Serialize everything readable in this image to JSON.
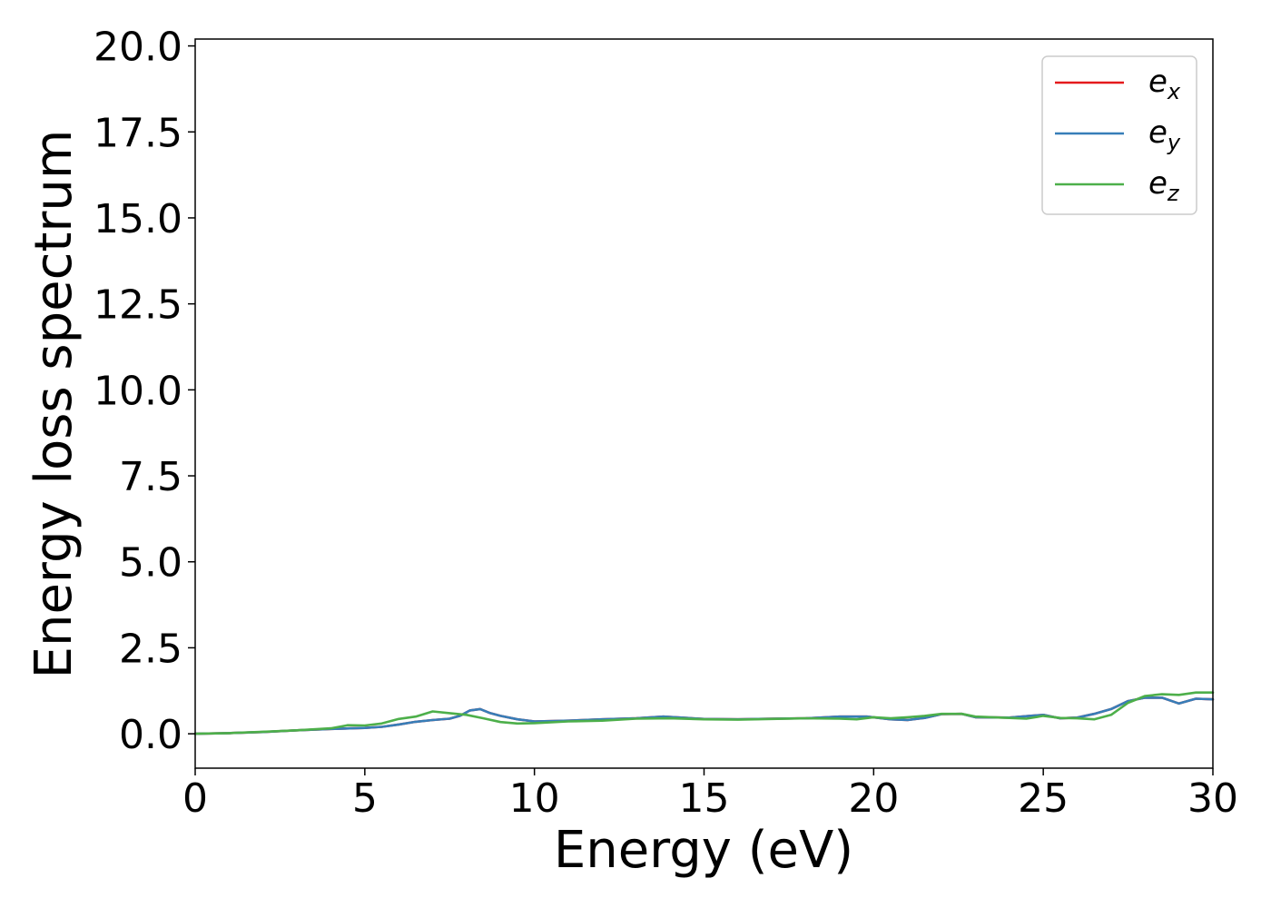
{
  "chart_data": {
    "type": "line",
    "xlabel": "Energy (eV)",
    "ylabel": "Energy loss spectrum",
    "xlim": [
      0,
      30
    ],
    "ylim": [
      -1.0,
      20.2
    ],
    "xticks": [
      "0",
      "5",
      "10",
      "15",
      "20",
      "25",
      "30"
    ],
    "yticks": [
      "0.0",
      "2.5",
      "5.0",
      "7.5",
      "10.0",
      "12.5",
      "15.0",
      "17.5",
      "20.0"
    ],
    "grid": false,
    "legend_position": "top-right",
    "series": [
      {
        "name": "e",
        "subscript": "x",
        "color": "#e41a1c",
        "x": [
          0,
          1,
          2,
          3,
          4,
          5,
          5.5,
          6,
          6.5,
          7,
          7.5,
          7.8,
          8.1,
          8.4,
          8.7,
          9,
          9.5,
          10,
          11,
          12,
          13,
          13.8,
          14.5,
          15,
          16,
          17,
          18,
          19,
          19.8,
          20.5,
          21,
          21.5,
          22,
          22.6,
          23,
          24,
          24.6,
          25,
          25.5,
          26,
          26.5,
          27,
          27.5,
          28,
          28.5,
          29,
          29.5,
          30
        ],
        "y": [
          0,
          0.02,
          0.05,
          0.1,
          0.14,
          0.17,
          0.2,
          0.27,
          0.35,
          0.4,
          0.44,
          0.52,
          0.68,
          0.72,
          0.6,
          0.52,
          0.42,
          0.36,
          0.38,
          0.42,
          0.45,
          0.5,
          0.46,
          0.43,
          0.42,
          0.44,
          0.45,
          0.5,
          0.5,
          0.42,
          0.4,
          0.46,
          0.57,
          0.58,
          0.48,
          0.47,
          0.52,
          0.55,
          0.45,
          0.47,
          0.58,
          0.72,
          0.95,
          1.05,
          1.05,
          0.88,
          1.02,
          1.0
        ]
      },
      {
        "name": "e",
        "subscript": "y",
        "color": "#377eb8",
        "x": [
          0,
          1,
          2,
          3,
          4,
          5,
          5.5,
          6,
          6.5,
          7,
          7.5,
          7.8,
          8.1,
          8.4,
          8.7,
          9,
          9.5,
          10,
          11,
          12,
          13,
          13.8,
          14.5,
          15,
          16,
          17,
          18,
          19,
          19.8,
          20.5,
          21,
          21.5,
          22,
          22.6,
          23,
          24,
          24.6,
          25,
          25.5,
          26,
          26.5,
          27,
          27.5,
          28,
          28.5,
          29,
          29.5,
          30
        ],
        "y": [
          0,
          0.02,
          0.05,
          0.1,
          0.14,
          0.17,
          0.2,
          0.27,
          0.35,
          0.4,
          0.44,
          0.52,
          0.68,
          0.72,
          0.6,
          0.52,
          0.42,
          0.36,
          0.38,
          0.42,
          0.45,
          0.5,
          0.46,
          0.43,
          0.42,
          0.44,
          0.45,
          0.5,
          0.5,
          0.42,
          0.4,
          0.46,
          0.57,
          0.58,
          0.48,
          0.47,
          0.52,
          0.55,
          0.45,
          0.47,
          0.58,
          0.72,
          0.95,
          1.05,
          1.05,
          0.88,
          1.02,
          1.0
        ]
      },
      {
        "name": "e",
        "subscript": "z",
        "color": "#4daf4a",
        "x": [
          0,
          1,
          2,
          3,
          4,
          4.5,
          5,
          5.5,
          6,
          6.5,
          7,
          7.5,
          8,
          8.5,
          9,
          9.5,
          10,
          11,
          12,
          13,
          14,
          15,
          16,
          17,
          18,
          19,
          19.5,
          20,
          20.5,
          21,
          21.5,
          22,
          22.6,
          23,
          24,
          24.5,
          25,
          25.5,
          26,
          26.5,
          27,
          27.5,
          28,
          28.5,
          29,
          29.5,
          30
        ],
        "y": [
          0,
          0.02,
          0.06,
          0.1,
          0.16,
          0.25,
          0.24,
          0.3,
          0.43,
          0.5,
          0.65,
          0.6,
          0.55,
          0.45,
          0.34,
          0.3,
          0.31,
          0.36,
          0.38,
          0.44,
          0.45,
          0.42,
          0.41,
          0.43,
          0.45,
          0.44,
          0.42,
          0.48,
          0.45,
          0.48,
          0.52,
          0.58,
          0.58,
          0.5,
          0.46,
          0.44,
          0.52,
          0.46,
          0.45,
          0.42,
          0.55,
          0.9,
          1.1,
          1.15,
          1.13,
          1.2,
          1.2
        ]
      }
    ]
  }
}
